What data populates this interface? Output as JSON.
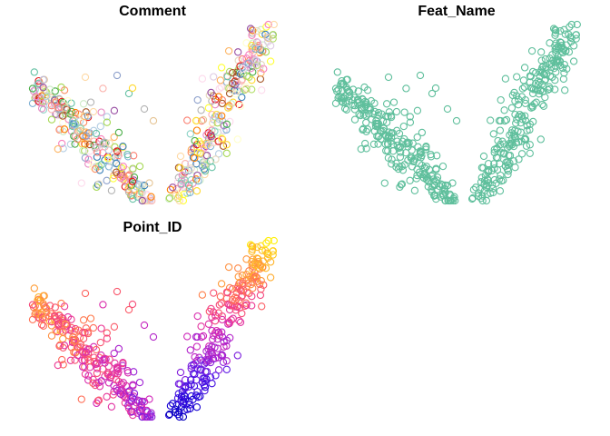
{
  "chart_data": [
    {
      "type": "scatter",
      "title": "Comment",
      "marker": "open-circle",
      "color_mode": "categorical",
      "palette": [
        "#e41a1c",
        "#377eb8",
        "#4daf4a",
        "#984ea3",
        "#ff7f00",
        "#ffff33",
        "#a65628",
        "#f781bf",
        "#66c2a5",
        "#fc8d62",
        "#8da0cb",
        "#e78ac3",
        "#a6d854",
        "#ffd92f",
        "#e5c494",
        "#b3b3b3",
        "#fbb4ae",
        "#b3cde3",
        "#ccebc5",
        "#decbe4",
        "#fed9a6",
        "#ffffcc",
        "#e5d8bd",
        "#fddaec",
        "#8dd3c7",
        "#bebada",
        "#fb8072",
        "#80b1d3",
        "#fdb462",
        "#b3de69"
      ]
    },
    {
      "type": "scatter",
      "title": "Feat_Name",
      "marker": "open-circle",
      "color_mode": "single",
      "color": "#5fbf9c"
    },
    {
      "type": "scatter",
      "title": "Point_ID",
      "marker": "open-circle",
      "color_mode": "continuous",
      "colormap": [
        "#0000b3",
        "#1a00d9",
        "#5a1ae6",
        "#9b22d6",
        "#d22ab9",
        "#f03a8c",
        "#ff6a5a",
        "#ffa632",
        "#ffd21a",
        "#ffff00"
      ]
    }
  ]
}
